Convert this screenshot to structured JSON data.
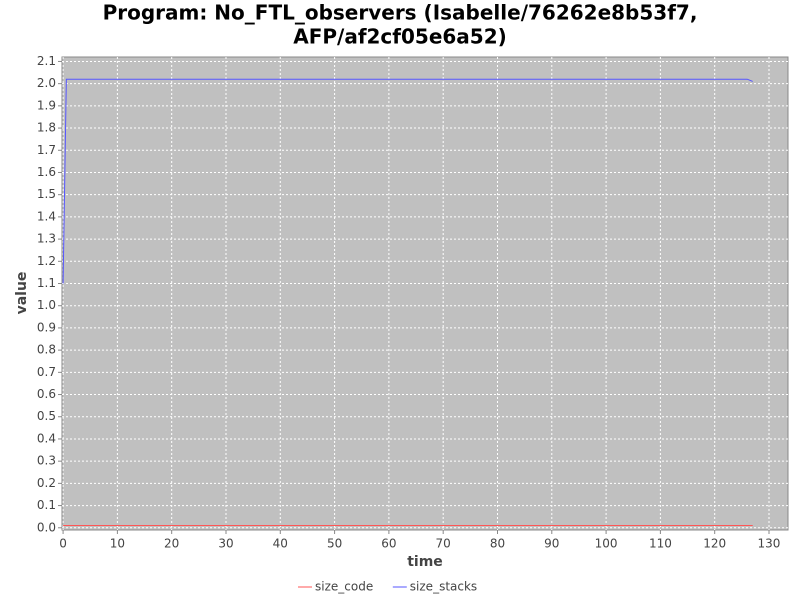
{
  "chart_data": {
    "type": "line",
    "title": [
      "Program: No_FTL_observers (Isabelle/76262e8b53f7,",
      "AFP/af2cf05e6a52)"
    ],
    "x_label": "time",
    "y_label": "value",
    "x": [
      0,
      0.6,
      126,
      127
    ],
    "series": [
      {
        "name": "size_code",
        "color": "#ff5555",
        "values": [
          0.01,
          0.01,
          0.01,
          0.01
        ]
      },
      {
        "name": "size_stacks",
        "color": "#5555ff",
        "values": [
          1.1,
          2.02,
          2.02,
          2.01
        ]
      }
    ],
    "xlim": [
      -0.2,
      133.5
    ],
    "ylim": [
      -0.01,
      2.12
    ],
    "xticks": [
      0,
      10,
      20,
      30,
      40,
      50,
      60,
      70,
      80,
      90,
      100,
      110,
      120,
      130
    ],
    "yticks": [
      {
        "value": 0,
        "label": "0.0"
      },
      0.1,
      0.2,
      0.3,
      0.4,
      0.5,
      0.6,
      0.7,
      0.8,
      0.9,
      {
        "value": 1,
        "label": "1.0"
      },
      1.1,
      1.2,
      1.3,
      1.4,
      1.5,
      1.6,
      1.7,
      1.8,
      1.9,
      {
        "value": 2,
        "label": "2.0"
      },
      2.1
    ],
    "grid": true,
    "legend": "bottom"
  }
}
